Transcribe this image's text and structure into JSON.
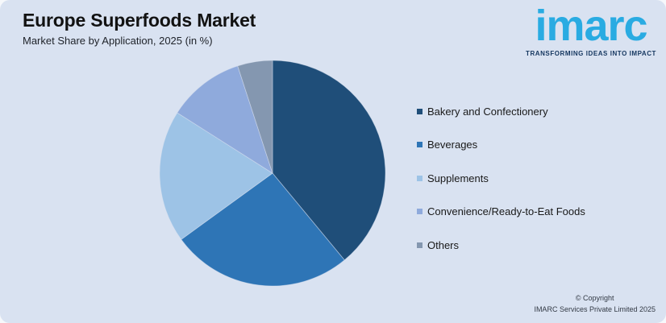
{
  "header": {
    "title": "Europe Superfoods Market",
    "subtitle": "Market Share by Application, 2025 (in %)"
  },
  "logo": {
    "brand": "imarc",
    "tagline": "TRANSFORMING IDEAS INTO IMPACT",
    "brand_color": "#29ABE2",
    "tagline_color": "#14365F"
  },
  "chart_data": {
    "type": "pie",
    "title": "Europe Superfoods Market",
    "subtitle": "Market Share by Application, 2025 (in %)",
    "unit": "%",
    "start_angle_deg": 0,
    "direction": "clockwise",
    "legend_position": "right",
    "data_labels_shown": false,
    "slices": [
      {
        "label": "Bakery and Confectionery",
        "value": 39,
        "color": "#1F4E79"
      },
      {
        "label": "Beverages",
        "value": 26,
        "color": "#2E75B6"
      },
      {
        "label": "Supplements",
        "value": 19,
        "color": "#9DC3E6"
      },
      {
        "label": "Convenience/Ready-to-Eat Foods",
        "value": 11,
        "color": "#8FAADC"
      },
      {
        "label": "Others",
        "value": 5,
        "color": "#8497B0"
      }
    ]
  },
  "footer": {
    "line1": "© Copyright",
    "line2": "IMARC Services Private Limited 2025"
  },
  "colors": {
    "panel_background": "#D9E2F1",
    "outer_background": "#F6F8FB",
    "title_text": "#121212",
    "legend_text": "#191919"
  }
}
